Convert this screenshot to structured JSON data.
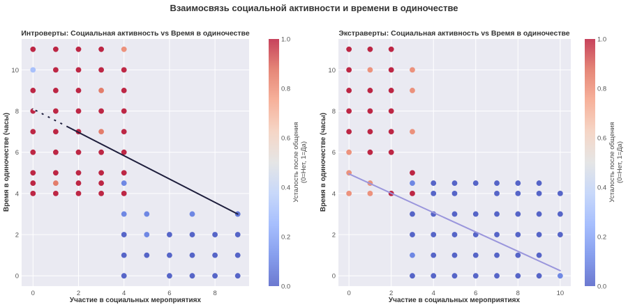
{
  "figure": {
    "suptitle": "Взаимосвязь социальной активности и времени в одиночестве",
    "background": "#ffffff",
    "plot_background": "#eaeaf2",
    "grid_color": "#ffffff"
  },
  "chart_data": [
    {
      "type": "scatter",
      "title": "Интроверты: Социальная активность vs Время в одиночестве",
      "xlabel": "Участие в социальных мероприятиях",
      "ylabel": "Время в одиночестве (часы)",
      "xlim": [
        -0.5,
        9.5
      ],
      "ylim": [
        -0.5,
        11.5
      ],
      "xticks": [
        0,
        2,
        4,
        6,
        8
      ],
      "xtick_labels": [
        "0",
        "2",
        "4",
        "6",
        "8"
      ],
      "yticks": [
        0,
        2,
        4,
        6,
        8,
        10
      ],
      "ytick_labels": [
        "0",
        "2",
        "4",
        "6",
        "8",
        "10"
      ],
      "grid": true,
      "colormap": "coolwarm",
      "color_range": [
        0,
        1
      ],
      "colorbar": {
        "label_line1": "Усталость после общения",
        "label_line2": "(0=Нет, 1=Да)",
        "ticks": [
          0.0,
          0.2,
          0.4,
          0.6,
          0.8,
          1.0
        ],
        "tick_labels": [
          "0.0",
          "0.2",
          "0.4",
          "0.6",
          "0.8",
          "1.0"
        ]
      },
      "trend_line": {
        "x": [
          0,
          9
        ],
        "y": [
          8.1,
          3.0
        ],
        "color": "#1e1e3c",
        "style": "solid",
        "dashed_segment_x": [
          0,
          1.5
        ]
      },
      "points": [
        {
          "x": 0,
          "y": 11,
          "c": 1
        },
        {
          "x": 1,
          "y": 11,
          "c": 1
        },
        {
          "x": 2,
          "y": 11,
          "c": 1
        },
        {
          "x": 3,
          "y": 11,
          "c": 1
        },
        {
          "x": 4,
          "y": 11,
          "c": 0.8
        },
        {
          "x": 0,
          "y": 10,
          "c": 0.3
        },
        {
          "x": 1,
          "y": 10,
          "c": 1
        },
        {
          "x": 2,
          "y": 10,
          "c": 1
        },
        {
          "x": 3,
          "y": 10,
          "c": 1
        },
        {
          "x": 4,
          "y": 10,
          "c": 1
        },
        {
          "x": 0,
          "y": 9,
          "c": 1
        },
        {
          "x": 1,
          "y": 9,
          "c": 1
        },
        {
          "x": 2,
          "y": 9,
          "c": 1
        },
        {
          "x": 3,
          "y": 9,
          "c": 0.85
        },
        {
          "x": 4,
          "y": 9,
          "c": 1
        },
        {
          "x": 0,
          "y": 8,
          "c": 1
        },
        {
          "x": 1,
          "y": 8,
          "c": 1
        },
        {
          "x": 2,
          "y": 8,
          "c": 1
        },
        {
          "x": 3,
          "y": 8,
          "c": 1
        },
        {
          "x": 4,
          "y": 8,
          "c": 1
        },
        {
          "x": 0,
          "y": 7,
          "c": 1
        },
        {
          "x": 1,
          "y": 7,
          "c": 1
        },
        {
          "x": 2,
          "y": 7,
          "c": 1
        },
        {
          "x": 3,
          "y": 7,
          "c": 0.85
        },
        {
          "x": 4,
          "y": 7,
          "c": 1
        },
        {
          "x": 0,
          "y": 6,
          "c": 1
        },
        {
          "x": 1,
          "y": 6,
          "c": 1
        },
        {
          "x": 2,
          "y": 6,
          "c": 1
        },
        {
          "x": 3,
          "y": 6,
          "c": 1
        },
        {
          "x": 4,
          "y": 6,
          "c": 1
        },
        {
          "x": 0,
          "y": 5,
          "c": 1
        },
        {
          "x": 1,
          "y": 5,
          "c": 1
        },
        {
          "x": 2,
          "y": 5,
          "c": 1
        },
        {
          "x": 3,
          "y": 5,
          "c": 1
        },
        {
          "x": 4,
          "y": 5,
          "c": 1
        },
        {
          "x": 0,
          "y": 4.5,
          "c": 1
        },
        {
          "x": 1,
          "y": 4.5,
          "c": 0.85
        },
        {
          "x": 2,
          "y": 4.5,
          "c": 1
        },
        {
          "x": 3,
          "y": 4.5,
          "c": 1
        },
        {
          "x": 4,
          "y": 4.5,
          "c": 0.1
        },
        {
          "x": 0,
          "y": 4,
          "c": 1
        },
        {
          "x": 1,
          "y": 4,
          "c": 1
        },
        {
          "x": 2,
          "y": 4,
          "c": 1
        },
        {
          "x": 3,
          "y": 4,
          "c": 1
        },
        {
          "x": 4,
          "y": 4,
          "c": 1
        },
        {
          "x": 4,
          "y": 3,
          "c": 0.1
        },
        {
          "x": 5,
          "y": 3,
          "c": 0.1
        },
        {
          "x": 7,
          "y": 3,
          "c": 0.1
        },
        {
          "x": 9,
          "y": 3,
          "c": 0.05
        },
        {
          "x": 4,
          "y": 2,
          "c": 0
        },
        {
          "x": 5,
          "y": 2,
          "c": 0.1
        },
        {
          "x": 6,
          "y": 2,
          "c": 0
        },
        {
          "x": 7,
          "y": 2,
          "c": 0
        },
        {
          "x": 8,
          "y": 2,
          "c": 0
        },
        {
          "x": 9,
          "y": 2,
          "c": 0
        },
        {
          "x": 4,
          "y": 1,
          "c": 0
        },
        {
          "x": 5,
          "y": 1,
          "c": 0
        },
        {
          "x": 6,
          "y": 1,
          "c": 0
        },
        {
          "x": 7,
          "y": 1,
          "c": 0
        },
        {
          "x": 8,
          "y": 1,
          "c": 0
        },
        {
          "x": 9,
          "y": 1,
          "c": 0
        },
        {
          "x": 4,
          "y": 0,
          "c": 0
        },
        {
          "x": 6,
          "y": 0,
          "c": 0
        },
        {
          "x": 7,
          "y": 0,
          "c": 0
        },
        {
          "x": 8,
          "y": 0,
          "c": 0
        },
        {
          "x": 9,
          "y": 0,
          "c": 0
        }
      ]
    },
    {
      "type": "scatter",
      "title": "Экстраверты: Социальная активность vs Время в одиночестве",
      "xlabel": "Участие в социальных мероприятиях",
      "ylabel": "Время в одиночестве (часы)",
      "xlim": [
        -0.5,
        10.5
      ],
      "ylim": [
        -0.5,
        11.5
      ],
      "xticks": [
        0,
        2,
        4,
        6,
        8,
        10
      ],
      "xtick_labels": [
        "0",
        "2",
        "4",
        "6",
        "8",
        "10"
      ],
      "yticks": [
        0,
        2,
        4,
        6,
        8,
        10
      ],
      "ytick_labels": [
        "0",
        "2",
        "4",
        "6",
        "8",
        "10"
      ],
      "grid": true,
      "colormap": "coolwarm",
      "color_range": [
        0,
        1
      ],
      "colorbar": {
        "label_line1": "Усталость после общения",
        "label_line2": "(0=Нет, 1=Да)",
        "ticks": [
          0.0,
          0.2,
          0.4,
          0.6,
          0.8,
          1.0
        ],
        "tick_labels": [
          "0.0",
          "0.2",
          "0.4",
          "0.6",
          "0.8",
          "1.0"
        ]
      },
      "trend_line": {
        "x": [
          0,
          10
        ],
        "y": [
          4.95,
          0.25
        ],
        "color": "#9a96dc",
        "style": "solid"
      },
      "points": [
        {
          "x": 0,
          "y": 11,
          "c": 1
        },
        {
          "x": 1,
          "y": 11,
          "c": 1
        },
        {
          "x": 2,
          "y": 11,
          "c": 1
        },
        {
          "x": 0,
          "y": 10,
          "c": 1
        },
        {
          "x": 1,
          "y": 10,
          "c": 0.8
        },
        {
          "x": 2,
          "y": 10,
          "c": 1
        },
        {
          "x": 3,
          "y": 10,
          "c": 0.8
        },
        {
          "x": 0,
          "y": 9,
          "c": 1
        },
        {
          "x": 1,
          "y": 9,
          "c": 1
        },
        {
          "x": 2,
          "y": 9,
          "c": 1
        },
        {
          "x": 3,
          "y": 9,
          "c": 0.8
        },
        {
          "x": 0,
          "y": 8,
          "c": 1
        },
        {
          "x": 1,
          "y": 8,
          "c": 1
        },
        {
          "x": 2,
          "y": 8,
          "c": 1
        },
        {
          "x": 0,
          "y": 7,
          "c": 1
        },
        {
          "x": 1,
          "y": 7,
          "c": 1
        },
        {
          "x": 2,
          "y": 7,
          "c": 1
        },
        {
          "x": 3,
          "y": 7,
          "c": 0.8
        },
        {
          "x": 0,
          "y": 6,
          "c": 0.8
        },
        {
          "x": 1,
          "y": 6,
          "c": 1
        },
        {
          "x": 2,
          "y": 6,
          "c": 1
        },
        {
          "x": 0,
          "y": 5,
          "c": 0.8
        },
        {
          "x": 3,
          "y": 5,
          "c": 1
        },
        {
          "x": 1,
          "y": 4.5,
          "c": 0.8
        },
        {
          "x": 3,
          "y": 4.5,
          "c": 0.1
        },
        {
          "x": 4,
          "y": 4.5,
          "c": 0
        },
        {
          "x": 5,
          "y": 4.5,
          "c": 0
        },
        {
          "x": 6,
          "y": 4.5,
          "c": 0
        },
        {
          "x": 7,
          "y": 4.5,
          "c": 0
        },
        {
          "x": 8,
          "y": 4.5,
          "c": 0
        },
        {
          "x": 9,
          "y": 4.5,
          "c": 0
        },
        {
          "x": 0,
          "y": 4,
          "c": 0.8
        },
        {
          "x": 1,
          "y": 4,
          "c": 0.8
        },
        {
          "x": 2,
          "y": 4,
          "c": 1
        },
        {
          "x": 3,
          "y": 4,
          "c": 1
        },
        {
          "x": 4,
          "y": 4,
          "c": 0
        },
        {
          "x": 5,
          "y": 4,
          "c": 0
        },
        {
          "x": 7,
          "y": 4,
          "c": 0
        },
        {
          "x": 8,
          "y": 4,
          "c": 0
        },
        {
          "x": 9,
          "y": 4,
          "c": 0
        },
        {
          "x": 10,
          "y": 4,
          "c": 0
        },
        {
          "x": 3,
          "y": 3,
          "c": 0
        },
        {
          "x": 4,
          "y": 3,
          "c": 0
        },
        {
          "x": 5,
          "y": 3,
          "c": 0
        },
        {
          "x": 6,
          "y": 3,
          "c": 0
        },
        {
          "x": 7,
          "y": 3,
          "c": 0
        },
        {
          "x": 8,
          "y": 3,
          "c": 0
        },
        {
          "x": 9,
          "y": 3,
          "c": 0
        },
        {
          "x": 10,
          "y": 3,
          "c": 0
        },
        {
          "x": 3,
          "y": 2,
          "c": 0
        },
        {
          "x": 4,
          "y": 2,
          "c": 0
        },
        {
          "x": 5,
          "y": 2,
          "c": 0
        },
        {
          "x": 6,
          "y": 2,
          "c": 0
        },
        {
          "x": 7,
          "y": 2,
          "c": 0
        },
        {
          "x": 8,
          "y": 2,
          "c": 0
        },
        {
          "x": 9,
          "y": 2,
          "c": 0
        },
        {
          "x": 10,
          "y": 2,
          "c": 0
        },
        {
          "x": 3,
          "y": 1,
          "c": 0.1
        },
        {
          "x": 4,
          "y": 1,
          "c": 0
        },
        {
          "x": 5,
          "y": 1,
          "c": 0
        },
        {
          "x": 6,
          "y": 1,
          "c": 0
        },
        {
          "x": 7,
          "y": 1,
          "c": 0
        },
        {
          "x": 8,
          "y": 1,
          "c": 0
        },
        {
          "x": 9,
          "y": 1,
          "c": 0
        },
        {
          "x": 3,
          "y": 0,
          "c": 0
        },
        {
          "x": 4,
          "y": 0,
          "c": 0
        },
        {
          "x": 5,
          "y": 0,
          "c": 0
        },
        {
          "x": 6,
          "y": 0,
          "c": 0
        },
        {
          "x": 7,
          "y": 0,
          "c": 0
        },
        {
          "x": 8,
          "y": 0,
          "c": 0
        },
        {
          "x": 9,
          "y": 0,
          "c": 0
        },
        {
          "x": 10,
          "y": 0,
          "c": 0.1
        }
      ]
    }
  ]
}
